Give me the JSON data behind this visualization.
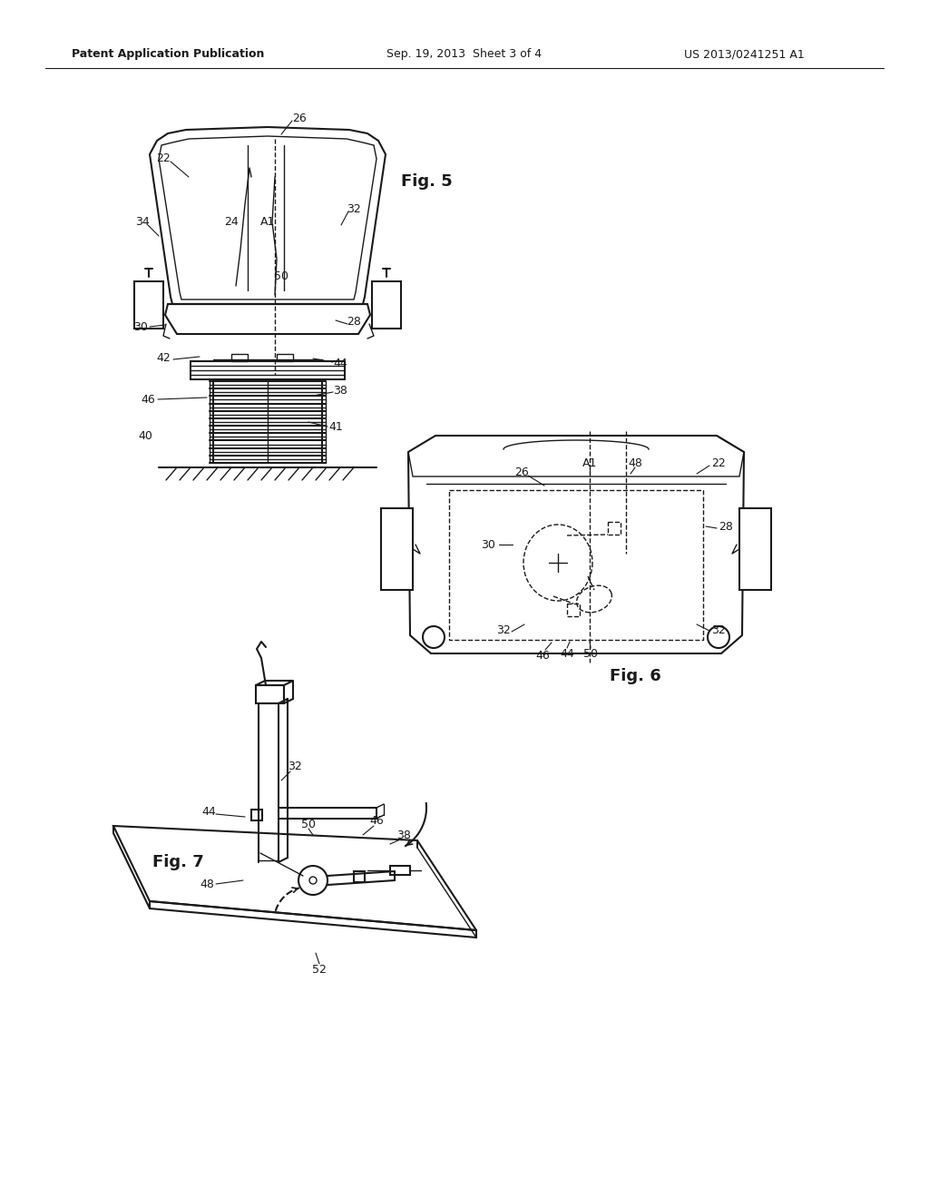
{
  "bg_color": "#ffffff",
  "line_color": "#1a1a1a",
  "header_left": "Patent Application Publication",
  "header_mid": "Sep. 19, 2013  Sheet 3 of 4",
  "header_right": "US 2013/0241251 A1",
  "fig5_label": "Fig. 5",
  "fig6_label": "Fig. 6",
  "fig7_label": "Fig. 7"
}
